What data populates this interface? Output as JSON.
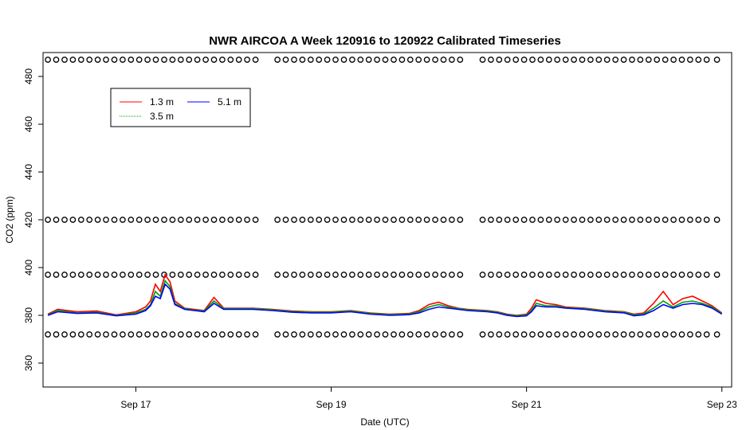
{
  "chart_data": {
    "type": "line",
    "title": "NWR AIRCOA A  Week 120916 to 120922  Calibrated Timeseries",
    "xlabel": "Date (UTC)",
    "ylabel": "CO2 (ppm)",
    "x_unit": "days (Sep 2012)",
    "xlim": [
      16.05,
      23.1
    ],
    "ylim": [
      350,
      490
    ],
    "x_ticks": [
      {
        "value": 17,
        "label": "Sep 17"
      },
      {
        "value": 19,
        "label": "Sep 19"
      },
      {
        "value": 21,
        "label": "Sep 21"
      },
      {
        "value": 23,
        "label": "Sep 23"
      }
    ],
    "y_ticks": [
      {
        "value": 360,
        "label": "360"
      },
      {
        "value": 380,
        "label": "380"
      },
      {
        "value": 400,
        "label": "400"
      },
      {
        "value": 420,
        "label": "420"
      },
      {
        "value": 440,
        "label": "440"
      },
      {
        "value": 460,
        "label": "460"
      },
      {
        "value": 480,
        "label": "480"
      }
    ],
    "grid": false,
    "legend_position": "top-left",
    "series": [
      {
        "name": "1.3 m",
        "color": "#ff0000",
        "points": [
          [
            16.1,
            380.5
          ],
          [
            16.2,
            382.5
          ],
          [
            16.4,
            381.5
          ],
          [
            16.6,
            381.8
          ],
          [
            16.8,
            380.2
          ],
          [
            17.0,
            381.5
          ],
          [
            17.1,
            383.5
          ],
          [
            17.15,
            386
          ],
          [
            17.2,
            393
          ],
          [
            17.25,
            390
          ],
          [
            17.3,
            397
          ],
          [
            17.35,
            394
          ],
          [
            17.4,
            386
          ],
          [
            17.5,
            383
          ],
          [
            17.6,
            382.5
          ],
          [
            17.7,
            382
          ],
          [
            17.8,
            387.5
          ],
          [
            17.9,
            383
          ],
          [
            18.0,
            383
          ],
          [
            18.2,
            383
          ],
          [
            18.4,
            382.5
          ],
          [
            18.6,
            381.8
          ],
          [
            18.8,
            381.5
          ],
          [
            19.0,
            381.5
          ],
          [
            19.2,
            382
          ],
          [
            19.4,
            381
          ],
          [
            19.6,
            380.5
          ],
          [
            19.8,
            380.8
          ],
          [
            19.9,
            382
          ],
          [
            20.0,
            384.5
          ],
          [
            20.1,
            385.5
          ],
          [
            20.2,
            384
          ],
          [
            20.3,
            383
          ],
          [
            20.4,
            382.5
          ],
          [
            20.6,
            382
          ],
          [
            20.7,
            381.5
          ],
          [
            20.8,
            380.5
          ],
          [
            20.9,
            380
          ],
          [
            21.0,
            380.5
          ],
          [
            21.05,
            383
          ],
          [
            21.1,
            386.5
          ],
          [
            21.2,
            385
          ],
          [
            21.3,
            384.5
          ],
          [
            21.4,
            383.5
          ],
          [
            21.6,
            383
          ],
          [
            21.8,
            382
          ],
          [
            22.0,
            381.5
          ],
          [
            22.1,
            380.5
          ],
          [
            22.2,
            381
          ],
          [
            22.3,
            385
          ],
          [
            22.4,
            390
          ],
          [
            22.5,
            384.5
          ],
          [
            22.6,
            387
          ],
          [
            22.7,
            388
          ],
          [
            22.8,
            386
          ],
          [
            22.9,
            384
          ],
          [
            23.0,
            381
          ]
        ]
      },
      {
        "name": "3.5 m",
        "color": "#00a000",
        "points": [
          [
            16.1,
            380.2
          ],
          [
            16.2,
            382
          ],
          [
            16.4,
            381
          ],
          [
            16.6,
            381.3
          ],
          [
            16.8,
            380
          ],
          [
            17.0,
            381
          ],
          [
            17.1,
            382.5
          ],
          [
            17.15,
            384.5
          ],
          [
            17.2,
            390
          ],
          [
            17.25,
            388
          ],
          [
            17.3,
            394.5
          ],
          [
            17.35,
            392
          ],
          [
            17.4,
            385
          ],
          [
            17.5,
            382.8
          ],
          [
            17.6,
            382.2
          ],
          [
            17.7,
            381.8
          ],
          [
            17.8,
            386
          ],
          [
            17.9,
            382.8
          ],
          [
            18.0,
            382.8
          ],
          [
            18.2,
            382.8
          ],
          [
            18.4,
            382.3
          ],
          [
            18.6,
            381.6
          ],
          [
            18.8,
            381.3
          ],
          [
            19.0,
            381.3
          ],
          [
            19.2,
            381.8
          ],
          [
            19.4,
            380.8
          ],
          [
            19.6,
            380.3
          ],
          [
            19.8,
            380.6
          ],
          [
            19.9,
            381.5
          ],
          [
            20.0,
            383.5
          ],
          [
            20.1,
            384.5
          ],
          [
            20.2,
            383.5
          ],
          [
            20.3,
            382.8
          ],
          [
            20.4,
            382.3
          ],
          [
            20.6,
            381.8
          ],
          [
            20.7,
            381.3
          ],
          [
            20.8,
            380.3
          ],
          [
            20.9,
            379.8
          ],
          [
            21.0,
            380.2
          ],
          [
            21.05,
            382
          ],
          [
            21.1,
            385
          ],
          [
            21.2,
            384
          ],
          [
            21.3,
            384
          ],
          [
            21.4,
            383.2
          ],
          [
            21.6,
            382.8
          ],
          [
            21.8,
            381.8
          ],
          [
            22.0,
            381.3
          ],
          [
            22.1,
            380.2
          ],
          [
            22.2,
            380.6
          ],
          [
            22.3,
            383
          ],
          [
            22.4,
            386
          ],
          [
            22.5,
            383.5
          ],
          [
            22.6,
            385.5
          ],
          [
            22.7,
            386
          ],
          [
            22.8,
            385
          ],
          [
            22.9,
            383.5
          ],
          [
            23.0,
            380.8
          ]
        ]
      },
      {
        "name": "5.1 m",
        "color": "#0000ff",
        "points": [
          [
            16.1,
            380
          ],
          [
            16.2,
            381.5
          ],
          [
            16.4,
            380.8
          ],
          [
            16.6,
            381
          ],
          [
            16.8,
            379.8
          ],
          [
            17.0,
            380.5
          ],
          [
            17.1,
            382
          ],
          [
            17.15,
            384
          ],
          [
            17.2,
            388
          ],
          [
            17.25,
            387
          ],
          [
            17.3,
            393
          ],
          [
            17.35,
            391
          ],
          [
            17.4,
            384.5
          ],
          [
            17.5,
            382.5
          ],
          [
            17.6,
            382
          ],
          [
            17.7,
            381.5
          ],
          [
            17.8,
            385
          ],
          [
            17.9,
            382.5
          ],
          [
            18.0,
            382.5
          ],
          [
            18.2,
            382.5
          ],
          [
            18.4,
            382
          ],
          [
            18.6,
            381.3
          ],
          [
            18.8,
            381
          ],
          [
            19.0,
            381
          ],
          [
            19.2,
            381.5
          ],
          [
            19.4,
            380.5
          ],
          [
            19.6,
            380
          ],
          [
            19.8,
            380.3
          ],
          [
            19.9,
            381
          ],
          [
            20.0,
            382.5
          ],
          [
            20.1,
            383.5
          ],
          [
            20.2,
            383
          ],
          [
            20.3,
            382.5
          ],
          [
            20.4,
            382
          ],
          [
            20.6,
            381.5
          ],
          [
            20.7,
            381
          ],
          [
            20.8,
            380
          ],
          [
            20.9,
            379.5
          ],
          [
            21.0,
            379.8
          ],
          [
            21.05,
            381.5
          ],
          [
            21.1,
            384
          ],
          [
            21.2,
            383.5
          ],
          [
            21.3,
            383.5
          ],
          [
            21.4,
            383
          ],
          [
            21.6,
            382.5
          ],
          [
            21.8,
            381.5
          ],
          [
            22.0,
            381
          ],
          [
            22.1,
            379.8
          ],
          [
            22.2,
            380.2
          ],
          [
            22.3,
            382
          ],
          [
            22.4,
            384.5
          ],
          [
            22.5,
            383
          ],
          [
            22.6,
            384.5
          ],
          [
            22.7,
            385
          ],
          [
            22.8,
            384.5
          ],
          [
            22.9,
            383
          ],
          [
            23.0,
            380.5
          ]
        ]
      }
    ],
    "flag_markers": {
      "description": "open circles along fixed levels",
      "levels": [
        487,
        420,
        397,
        372
      ],
      "segments": [
        [
          16.1,
          18.25
        ],
        [
          18.45,
          20.35
        ],
        [
          20.55,
          22.85
        ],
        [
          22.95,
          23.0
        ]
      ],
      "spacing": 0.085
    }
  }
}
